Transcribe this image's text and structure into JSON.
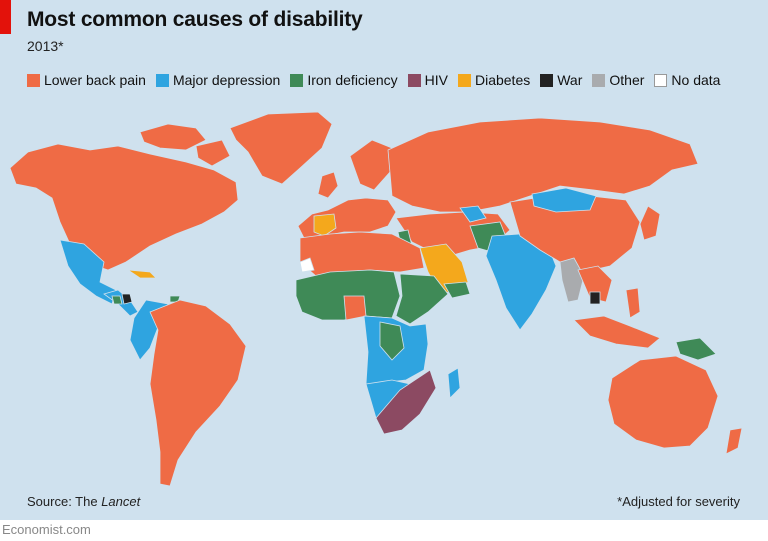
{
  "header": {
    "title": "Most common causes of disability",
    "subtitle": "2013*"
  },
  "legend": [
    {
      "label": "Lower back pain",
      "color": "#ef6b45"
    },
    {
      "label": "Major depression",
      "color": "#2fa4e0"
    },
    {
      "label": "Iron deficiency",
      "color": "#3f8a57"
    },
    {
      "label": "HIV",
      "color": "#8c4a62"
    },
    {
      "label": "Diabetes",
      "color": "#f4a81c"
    },
    {
      "label": "War",
      "color": "#222222"
    },
    {
      "label": "Other",
      "color": "#a9abae"
    },
    {
      "label": "No data",
      "color": "#ffffff"
    }
  ],
  "footer": {
    "source_prefix": "Source: The ",
    "source_name": "Lancet",
    "note": "*Adjusted for severity",
    "brand": "Economist.com"
  },
  "colors": {
    "background": "#cfe1ee",
    "accent": "#e3120b"
  }
}
